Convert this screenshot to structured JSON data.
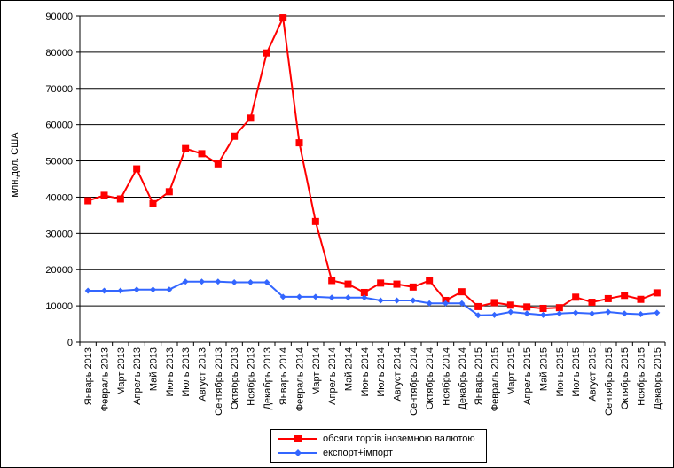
{
  "chart_data": {
    "type": "line",
    "ylabel": "млн.дол. США",
    "ylim": [
      0,
      90000
    ],
    "yticks": [
      "0",
      "10000",
      "20000",
      "30000",
      "40000",
      "50000",
      "60000",
      "70000",
      "80000",
      "90000"
    ],
    "grid": "horizontal",
    "legend": "bottom",
    "categories": [
      "Январь 2013",
      "Февраль 2013",
      "Март 2013",
      "Апрель 2013",
      "Май 2013",
      "Июнь 2013",
      "Июль 2013",
      "Август 2013",
      "Сентябрь 2013",
      "Октябрь 2013",
      "Ноябрь 2013",
      "Декабрь 2013",
      "Январь 2014",
      "Февраль 2014",
      "Март 2014",
      "Апрель 2014",
      "Май 2014",
      "Июнь 2014",
      "Июль 2014",
      "Август 2014",
      "Сентябрь 2014",
      "Октябрь 2014",
      "Ноябрь 2014",
      "Декабрь 2014",
      "Январь 2015",
      "Февраль 2015",
      "Март 2015",
      "Апрель 2015",
      "Май 2015",
      "Июнь 2015",
      "Июль 2015",
      "Август 2015",
      "Сентябрь 2015",
      "Октябрь 2015",
      "Ноябрь 2015",
      "Декабрь 2015"
    ],
    "series": [
      {
        "name": "обсяги торгів іноземною валютою",
        "color": "#ff0000",
        "marker": "square",
        "values": [
          39000,
          40500,
          39500,
          47800,
          38200,
          41500,
          53400,
          52000,
          49200,
          56800,
          61800,
          79800,
          89500,
          55000,
          33300,
          17000,
          16000,
          13700,
          16300,
          16000,
          15200,
          17000,
          11500,
          13900,
          9800,
          10900,
          10200,
          9700,
          9300,
          9500,
          12400,
          11000,
          12000,
          12900,
          11800,
          13600
        ]
      },
      {
        "name": "експорт+імпорт",
        "color": "#3366ff",
        "marker": "diamond",
        "values": [
          14200,
          14200,
          14200,
          14500,
          14500,
          14500,
          16700,
          16700,
          16700,
          16500,
          16500,
          16500,
          12500,
          12500,
          12500,
          12300,
          12300,
          12300,
          11500,
          11500,
          11500,
          10700,
          10700,
          10700,
          7400,
          7500,
          8300,
          7900,
          7500,
          7900,
          8100,
          7900,
          8300,
          7900,
          7700,
          8100
        ]
      }
    ]
  }
}
